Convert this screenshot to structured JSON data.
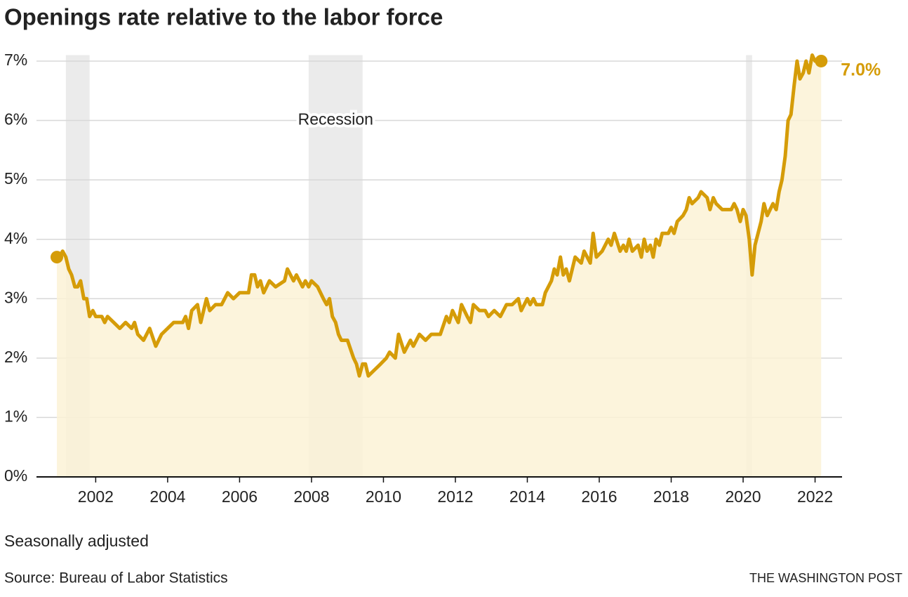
{
  "chart_data": {
    "type": "line",
    "title": "Openings rate relative to the labor force",
    "subtitle": "Seasonally adjusted",
    "source": "Source: Bureau of Labor Statistics",
    "credit": "THE WASHINGTON POST",
    "recession_label": "Recession",
    "recessions": [
      [
        2001.17,
        2001.83
      ],
      [
        2007.92,
        2009.42
      ],
      [
        2020.08,
        2020.25
      ]
    ],
    "xlim": [
      2000.9,
      2022.75
    ],
    "xticks": [
      2002,
      2004,
      2006,
      2008,
      2010,
      2012,
      2014,
      2016,
      2018,
      2020,
      2022
    ],
    "ylim": [
      0,
      7.1
    ],
    "yticks": [
      {
        "value": 0,
        "label": "0%"
      },
      {
        "value": 1,
        "label": "1%"
      },
      {
        "value": 2,
        "label": "2%"
      },
      {
        "value": 3,
        "label": "3%"
      },
      {
        "value": 4,
        "label": "4%"
      },
      {
        "value": 5,
        "label": "5%"
      },
      {
        "value": 6,
        "label": "6%"
      },
      {
        "value": 7,
        "label": "7%"
      }
    ],
    "grid": true,
    "annotations": [
      {
        "x": 2022.17,
        "y": 7.0,
        "label": "7.0%"
      }
    ],
    "series": [
      {
        "color": "#d59c08",
        "fill": "#fbf2d6",
        "x": [
          2000.92,
          2001.0,
          2001.08,
          2001.17,
          2001.25,
          2001.33,
          2001.42,
          2001.5,
          2001.58,
          2001.67,
          2001.75,
          2001.83,
          2001.92,
          2002.0,
          2002.17,
          2002.25,
          2002.33,
          2002.5,
          2002.67,
          2002.83,
          2003.0,
          2003.08,
          2003.17,
          2003.33,
          2003.5,
          2003.67,
          2003.83,
          2004.0,
          2004.17,
          2004.42,
          2004.5,
          2004.58,
          2004.67,
          2004.83,
          2004.92,
          2005.08,
          2005.17,
          2005.33,
          2005.5,
          2005.67,
          2005.83,
          2006.0,
          2006.25,
          2006.33,
          2006.42,
          2006.5,
          2006.58,
          2006.67,
          2006.83,
          2007.0,
          2007.25,
          2007.33,
          2007.5,
          2007.58,
          2007.75,
          2007.83,
          2007.92,
          2008.0,
          2008.17,
          2008.33,
          2008.42,
          2008.5,
          2008.58,
          2008.67,
          2008.75,
          2008.83,
          2009.0,
          2009.17,
          2009.25,
          2009.33,
          2009.42,
          2009.5,
          2009.58,
          2009.75,
          2009.92,
          2010.08,
          2010.17,
          2010.33,
          2010.42,
          2010.58,
          2010.75,
          2010.83,
          2011.0,
          2011.17,
          2011.33,
          2011.58,
          2011.75,
          2011.83,
          2011.92,
          2012.08,
          2012.17,
          2012.33,
          2012.42,
          2012.5,
          2012.67,
          2012.83,
          2012.92,
          2013.08,
          2013.25,
          2013.42,
          2013.58,
          2013.75,
          2013.83,
          2014.0,
          2014.08,
          2014.17,
          2014.25,
          2014.42,
          2014.5,
          2014.67,
          2014.75,
          2014.83,
          2014.92,
          2015.0,
          2015.08,
          2015.17,
          2015.33,
          2015.5,
          2015.58,
          2015.75,
          2015.83,
          2015.92,
          2016.08,
          2016.25,
          2016.33,
          2016.42,
          2016.58,
          2016.67,
          2016.75,
          2016.83,
          2016.92,
          2017.08,
          2017.17,
          2017.25,
          2017.33,
          2017.42,
          2017.5,
          2017.58,
          2017.67,
          2017.75,
          2017.92,
          2018.0,
          2018.08,
          2018.17,
          2018.33,
          2018.42,
          2018.5,
          2018.58,
          2018.75,
          2018.83,
          2019.0,
          2019.08,
          2019.17,
          2019.25,
          2019.42,
          2019.67,
          2019.75,
          2019.83,
          2019.92,
          2020.0,
          2020.08,
          2020.17,
          2020.25,
          2020.33,
          2020.5,
          2020.58,
          2020.67,
          2020.75,
          2020.83,
          2020.92,
          2021.0,
          2021.08,
          2021.17,
          2021.25,
          2021.33,
          2021.42,
          2021.5,
          2021.58,
          2021.67,
          2021.75,
          2021.83,
          2021.92,
          2022.0,
          2022.08,
          2022.17
        ],
        "values": [
          3.7,
          3.7,
          3.8,
          3.7,
          3.5,
          3.4,
          3.2,
          3.2,
          3.3,
          3.0,
          3.0,
          2.7,
          2.8,
          2.7,
          2.7,
          2.6,
          2.7,
          2.6,
          2.5,
          2.6,
          2.5,
          2.6,
          2.4,
          2.3,
          2.5,
          2.2,
          2.4,
          2.5,
          2.6,
          2.6,
          2.7,
          2.5,
          2.8,
          2.9,
          2.6,
          3.0,
          2.8,
          2.9,
          2.9,
          3.1,
          3.0,
          3.1,
          3.1,
          3.4,
          3.4,
          3.2,
          3.3,
          3.1,
          3.3,
          3.2,
          3.3,
          3.5,
          3.3,
          3.4,
          3.2,
          3.3,
          3.2,
          3.3,
          3.2,
          3.0,
          2.9,
          3.0,
          2.7,
          2.6,
          2.4,
          2.3,
          2.3,
          2.0,
          1.9,
          1.7,
          1.9,
          1.9,
          1.7,
          1.8,
          1.9,
          2.0,
          2.1,
          2.0,
          2.4,
          2.1,
          2.3,
          2.2,
          2.4,
          2.3,
          2.4,
          2.4,
          2.7,
          2.6,
          2.8,
          2.6,
          2.9,
          2.7,
          2.6,
          2.9,
          2.8,
          2.8,
          2.7,
          2.8,
          2.7,
          2.9,
          2.9,
          3.0,
          2.8,
          3.0,
          2.9,
          3.0,
          2.9,
          2.9,
          3.1,
          3.3,
          3.5,
          3.4,
          3.7,
          3.4,
          3.5,
          3.3,
          3.7,
          3.6,
          3.8,
          3.6,
          4.1,
          3.7,
          3.8,
          4.0,
          3.9,
          4.1,
          3.8,
          3.9,
          3.8,
          4.0,
          3.8,
          3.9,
          3.7,
          4.0,
          3.8,
          3.9,
          3.7,
          4.0,
          3.9,
          4.1,
          4.1,
          4.2,
          4.1,
          4.3,
          4.4,
          4.5,
          4.7,
          4.6,
          4.7,
          4.8,
          4.7,
          4.5,
          4.7,
          4.6,
          4.5,
          4.5,
          4.6,
          4.5,
          4.3,
          4.5,
          4.4,
          4.0,
          3.4,
          3.9,
          4.3,
          4.6,
          4.4,
          4.5,
          4.6,
          4.5,
          4.8,
          5.0,
          5.4,
          6.0,
          6.1,
          6.6,
          7.0,
          6.7,
          6.8,
          7.0,
          6.8,
          7.1,
          7.0,
          7.0,
          7.0
        ]
      }
    ]
  }
}
